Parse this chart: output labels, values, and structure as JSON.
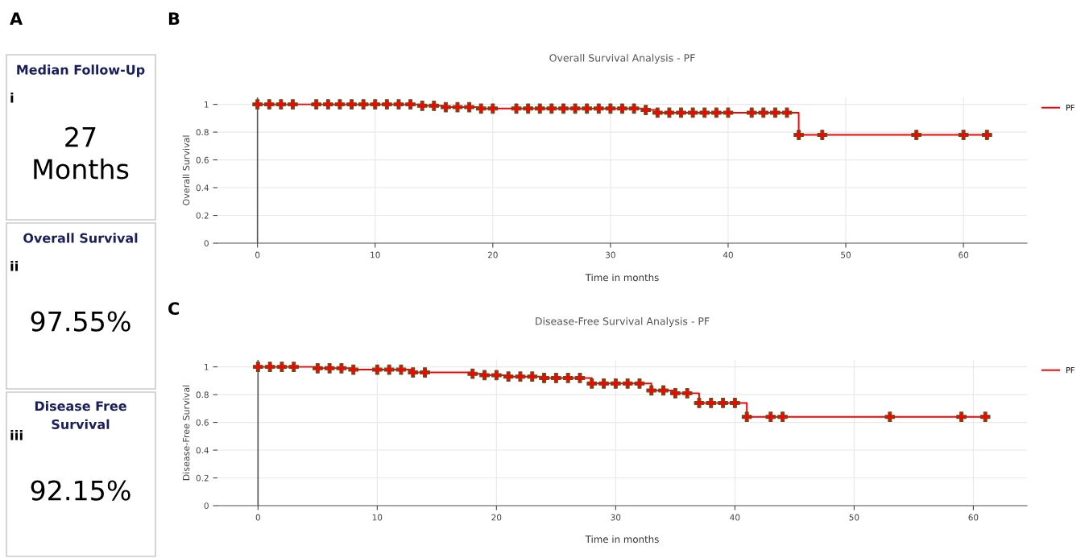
{
  "chart_data": [
    {
      "type": "other",
      "annotations": [
        "A",
        "Median Follow-Up",
        "i",
        "27\nMonths",
        "Overall Survival",
        "ii",
        "97.55%",
        "Disease Free\nSurvival",
        "iii",
        "92.15%"
      ]
    },
    {
      "type": "step",
      "title": "Overall Survival Analysis - PF",
      "xlabel": "Time in months",
      "ylabel": "Overall Survival",
      "annotations": [
        "B"
      ],
      "xlim": [
        -3.4,
        65.4
      ],
      "ylim": [
        0,
        1.05
      ],
      "xticks": [
        0,
        10,
        20,
        30,
        40,
        50,
        60
      ],
      "yticks": [
        0,
        0.2,
        0.4,
        0.6,
        0.8,
        1
      ],
      "grid": true,
      "legend": "top right",
      "marker": "cross",
      "series": [
        {
          "name": "PF",
          "color": "#ff0000",
          "x": [
            0,
            1,
            2,
            3,
            5,
            6,
            7,
            8,
            9,
            10,
            11,
            12,
            13,
            14,
            15,
            16,
            17,
            18,
            19,
            20,
            22,
            23,
            24,
            25,
            26,
            27,
            28,
            29,
            30,
            31,
            32,
            33,
            34,
            35,
            36,
            37,
            38,
            39,
            40,
            42,
            43,
            44,
            45,
            46,
            48,
            56,
            60,
            62
          ],
          "values": [
            1,
            1,
            1,
            1,
            1,
            1,
            1,
            1,
            1,
            1,
            1,
            1,
            1,
            0.99,
            0.99,
            0.98,
            0.98,
            0.98,
            0.97,
            0.97,
            0.97,
            0.97,
            0.97,
            0.97,
            0.97,
            0.97,
            0.97,
            0.97,
            0.97,
            0.97,
            0.97,
            0.96,
            0.94,
            0.94,
            0.94,
            0.94,
            0.94,
            0.94,
            0.94,
            0.94,
            0.94,
            0.94,
            0.94,
            0.78,
            0.78,
            0.78,
            0.78,
            0.78
          ]
        }
      ]
    },
    {
      "type": "step",
      "title": "Disease-Free Survival Analysis - PF",
      "xlabel": "Time in months",
      "ylabel": "Disease-Free Survival",
      "annotations": [
        "C"
      ],
      "xlim": [
        -3.4,
        64.5
      ],
      "ylim": [
        0,
        1.05
      ],
      "xticks": [
        0,
        10,
        20,
        30,
        40,
        50,
        60
      ],
      "yticks": [
        0,
        0.2,
        0.4,
        0.6,
        0.8,
        1
      ],
      "grid": true,
      "legend": "top right",
      "marker": "cross",
      "series": [
        {
          "name": "PF",
          "color": "#ff0000",
          "x": [
            0,
            1,
            2,
            3,
            5,
            6,
            7,
            8,
            10,
            11,
            12,
            13,
            14,
            18,
            19,
            20,
            21,
            22,
            23,
            24,
            25,
            26,
            27,
            28,
            29,
            30,
            31,
            32,
            33,
            34,
            35,
            36,
            37,
            38,
            39,
            40,
            41,
            43,
            44,
            53,
            59,
            61
          ],
          "values": [
            1,
            1,
            1,
            1,
            0.99,
            0.99,
            0.99,
            0.98,
            0.98,
            0.98,
            0.98,
            0.96,
            0.96,
            0.95,
            0.94,
            0.94,
            0.93,
            0.93,
            0.93,
            0.92,
            0.92,
            0.92,
            0.92,
            0.88,
            0.88,
            0.88,
            0.88,
            0.88,
            0.83,
            0.83,
            0.81,
            0.81,
            0.74,
            0.74,
            0.74,
            0.74,
            0.64,
            0.64,
            0.64,
            0.64,
            0.64,
            0.64
          ]
        }
      ]
    }
  ]
}
